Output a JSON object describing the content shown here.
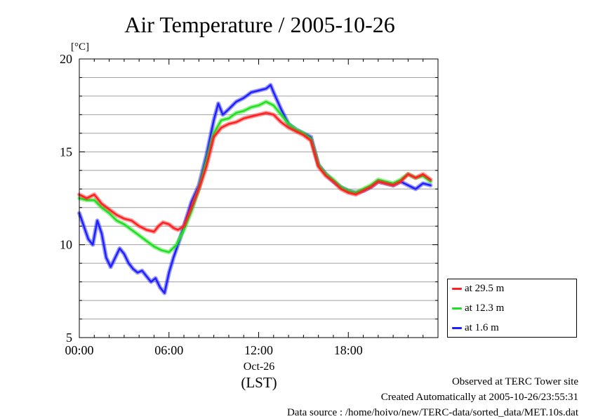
{
  "chart_data": {
    "type": "line",
    "title": "Air Temperature / 2005-10-26",
    "ylabel": "[°C]",
    "xlabel": "(LST)",
    "ylim": [
      5,
      20
    ],
    "yticks": [
      5,
      10,
      15,
      20
    ],
    "xlim": [
      0,
      24
    ],
    "xticks": [
      {
        "value": 0,
        "label": "00:00"
      },
      {
        "value": 6,
        "label": "06:00"
      },
      {
        "value": 12,
        "label": "12:00"
      },
      {
        "value": 18,
        "label": "18:00"
      }
    ],
    "date_label": "Oct-26",
    "grid": "horizontal",
    "legend_position": "right-bottom",
    "series": [
      {
        "name": "at 29.5 m",
        "color": "#ff2020",
        "points": [
          [
            0,
            12.7
          ],
          [
            0.5,
            12.5
          ],
          [
            1,
            12.7
          ],
          [
            1.5,
            12.2
          ],
          [
            2,
            11.9
          ],
          [
            2.5,
            11.6
          ],
          [
            3,
            11.4
          ],
          [
            3.5,
            11.3
          ],
          [
            4,
            11.0
          ],
          [
            4.5,
            10.8
          ],
          [
            5,
            10.7
          ],
          [
            5.3,
            11.0
          ],
          [
            5.6,
            11.2
          ],
          [
            6,
            11.1
          ],
          [
            6.3,
            10.9
          ],
          [
            6.6,
            10.8
          ],
          [
            7,
            11.0
          ],
          [
            7.5,
            12.0
          ],
          [
            8,
            13.0
          ],
          [
            8.5,
            14.2
          ],
          [
            9,
            15.8
          ],
          [
            9.5,
            16.3
          ],
          [
            10,
            16.5
          ],
          [
            10.5,
            16.6
          ],
          [
            11,
            16.8
          ],
          [
            11.5,
            16.9
          ],
          [
            12,
            17.0
          ],
          [
            12.5,
            17.1
          ],
          [
            13,
            17.0
          ],
          [
            13.5,
            16.6
          ],
          [
            14,
            16.3
          ],
          [
            14.5,
            16.1
          ],
          [
            15,
            15.9
          ],
          [
            15.5,
            15.6
          ],
          [
            16,
            14.2
          ],
          [
            16.5,
            13.7
          ],
          [
            17,
            13.4
          ],
          [
            17.5,
            13.0
          ],
          [
            18,
            12.8
          ],
          [
            18.5,
            12.7
          ],
          [
            19,
            12.9
          ],
          [
            19.5,
            13.1
          ],
          [
            20,
            13.4
          ],
          [
            20.5,
            13.3
          ],
          [
            21,
            13.2
          ],
          [
            21.5,
            13.4
          ],
          [
            22,
            13.8
          ],
          [
            22.5,
            13.6
          ],
          [
            23,
            13.8
          ],
          [
            23.5,
            13.5
          ]
        ]
      },
      {
        "name": "at 12.3 m",
        "color": "#20e020",
        "points": [
          [
            0,
            12.5
          ],
          [
            0.5,
            12.4
          ],
          [
            1,
            12.4
          ],
          [
            1.5,
            12.0
          ],
          [
            2,
            11.7
          ],
          [
            2.5,
            11.3
          ],
          [
            3,
            11.1
          ],
          [
            3.5,
            10.8
          ],
          [
            4,
            10.5
          ],
          [
            4.5,
            10.2
          ],
          [
            5,
            9.9
          ],
          [
            5.5,
            9.7
          ],
          [
            6,
            9.6
          ],
          [
            6.5,
            10.0
          ],
          [
            7,
            10.8
          ],
          [
            7.5,
            11.8
          ],
          [
            8,
            13.0
          ],
          [
            8.5,
            14.5
          ],
          [
            9,
            16.0
          ],
          [
            9.5,
            16.7
          ],
          [
            10,
            16.8
          ],
          [
            10.5,
            17.1
          ],
          [
            11,
            17.2
          ],
          [
            11.5,
            17.4
          ],
          [
            12,
            17.5
          ],
          [
            12.5,
            17.7
          ],
          [
            13,
            17.5
          ],
          [
            13.5,
            17.0
          ],
          [
            14,
            16.5
          ],
          [
            14.5,
            16.2
          ],
          [
            15,
            16.0
          ],
          [
            15.5,
            15.7
          ],
          [
            16,
            14.3
          ],
          [
            16.5,
            13.8
          ],
          [
            17,
            13.5
          ],
          [
            17.5,
            13.1
          ],
          [
            18,
            12.9
          ],
          [
            18.5,
            12.8
          ],
          [
            19,
            13.0
          ],
          [
            19.5,
            13.2
          ],
          [
            20,
            13.5
          ],
          [
            20.5,
            13.4
          ],
          [
            21,
            13.3
          ],
          [
            21.5,
            13.5
          ],
          [
            22,
            13.8
          ],
          [
            22.5,
            13.6
          ],
          [
            23,
            13.7
          ],
          [
            23.5,
            13.4
          ]
        ]
      },
      {
        "name": "at 1.6 m",
        "color": "#2020ff",
        "points": [
          [
            0,
            11.7
          ],
          [
            0.3,
            11.0
          ],
          [
            0.6,
            10.3
          ],
          [
            0.9,
            10.0
          ],
          [
            1.2,
            11.3
          ],
          [
            1.5,
            10.6
          ],
          [
            1.8,
            9.3
          ],
          [
            2.1,
            8.8
          ],
          [
            2.4,
            9.3
          ],
          [
            2.7,
            9.8
          ],
          [
            3.0,
            9.5
          ],
          [
            3.3,
            9.0
          ],
          [
            3.6,
            8.7
          ],
          [
            3.9,
            8.5
          ],
          [
            4.2,
            8.6
          ],
          [
            4.5,
            8.3
          ],
          [
            4.8,
            8.0
          ],
          [
            5.1,
            8.2
          ],
          [
            5.4,
            7.7
          ],
          [
            5.7,
            7.4
          ],
          [
            6.0,
            8.5
          ],
          [
            6.3,
            9.3
          ],
          [
            6.6,
            10.0
          ],
          [
            7,
            11.0
          ],
          [
            7.5,
            12.3
          ],
          [
            8,
            13.2
          ],
          [
            8.5,
            14.8
          ],
          [
            9,
            16.7
          ],
          [
            9.3,
            17.6
          ],
          [
            9.6,
            17.0
          ],
          [
            10,
            17.3
          ],
          [
            10.5,
            17.7
          ],
          [
            11,
            17.9
          ],
          [
            11.5,
            18.2
          ],
          [
            12,
            18.3
          ],
          [
            12.5,
            18.4
          ],
          [
            12.8,
            18.6
          ],
          [
            13,
            18.2
          ],
          [
            13.5,
            17.3
          ],
          [
            14,
            16.5
          ],
          [
            14.5,
            16.2
          ],
          [
            15,
            16.0
          ],
          [
            15.5,
            15.8
          ],
          [
            16,
            14.3
          ],
          [
            16.5,
            13.8
          ],
          [
            17,
            13.4
          ],
          [
            17.5,
            13.1
          ],
          [
            18,
            12.9
          ],
          [
            18.5,
            12.8
          ],
          [
            19,
            12.9
          ],
          [
            19.5,
            13.1
          ],
          [
            20,
            13.4
          ],
          [
            20.5,
            13.3
          ],
          [
            21,
            13.2
          ],
          [
            21.5,
            13.4
          ],
          [
            22,
            13.2
          ],
          [
            22.5,
            13.0
          ],
          [
            23,
            13.3
          ],
          [
            23.5,
            13.2
          ]
        ]
      }
    ]
  },
  "footer": {
    "observed": "Observed at TERC Tower site",
    "created": "Created Automatically at 2005-10-26/23:55:31",
    "source": "Data source : /home/hoivo/new/TERC-data/sorted_data/MET.10s.dat"
  }
}
